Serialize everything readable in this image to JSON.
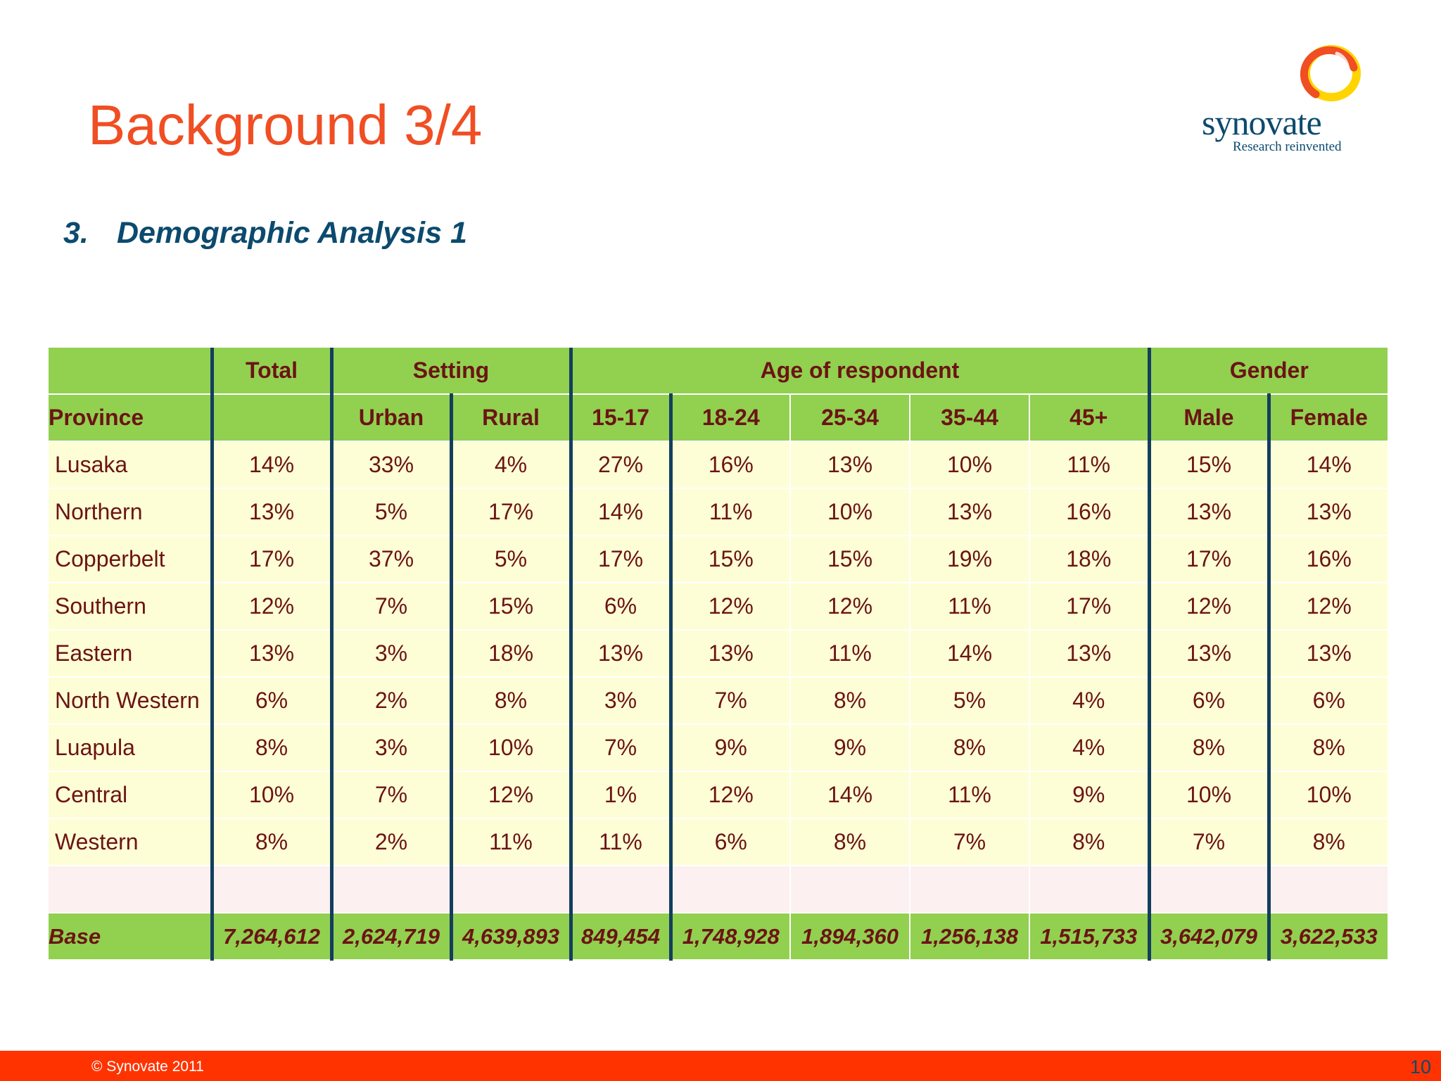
{
  "slide": {
    "title": "Background 3/4",
    "subtitle_number": "3.",
    "subtitle": "Demographic Analysis 1"
  },
  "logo": {
    "name": "synovate",
    "tagline": "Research reinvented",
    "colors": {
      "outer_ring": "#f04e23",
      "inner_ring": "#ffd400"
    }
  },
  "table": {
    "group_headers": {
      "blank": "",
      "total": "Total",
      "setting": "Setting",
      "age": "Age of respondent",
      "gender": "Gender"
    },
    "sub_headers": [
      "Province",
      "",
      "Urban",
      "Rural",
      "15-17",
      "18-24",
      "25-34",
      "35-44",
      "45+",
      "Male",
      "Female"
    ],
    "rows": [
      [
        "Lusaka",
        "14%",
        "33%",
        "4%",
        "27%",
        "16%",
        "13%",
        "10%",
        "11%",
        "15%",
        "14%"
      ],
      [
        "Northern",
        "13%",
        "5%",
        "17%",
        "14%",
        "11%",
        "10%",
        "13%",
        "16%",
        "13%",
        "13%"
      ],
      [
        "Copperbelt",
        "17%",
        "37%",
        "5%",
        "17%",
        "15%",
        "15%",
        "19%",
        "18%",
        "17%",
        "16%"
      ],
      [
        "Southern",
        "12%",
        "7%",
        "15%",
        "6%",
        "12%",
        "12%",
        "11%",
        "17%",
        "12%",
        "12%"
      ],
      [
        "Eastern",
        "13%",
        "3%",
        "18%",
        "13%",
        "13%",
        "11%",
        "14%",
        "13%",
        "13%",
        "13%"
      ],
      [
        "North Western",
        "6%",
        "2%",
        "8%",
        "3%",
        "7%",
        "8%",
        "5%",
        "4%",
        "6%",
        "6%"
      ],
      [
        "Luapula",
        "8%",
        "3%",
        "10%",
        "7%",
        "9%",
        "9%",
        "8%",
        "4%",
        "8%",
        "8%"
      ],
      [
        "Central",
        "10%",
        "7%",
        "12%",
        "1%",
        "12%",
        "14%",
        "11%",
        "9%",
        "10%",
        "10%"
      ],
      [
        "Western",
        "8%",
        "2%",
        "11%",
        "11%",
        "6%",
        "8%",
        "7%",
        "8%",
        "7%",
        "8%"
      ]
    ],
    "base": [
      "Base",
      "7,264,612",
      "2,624,719",
      "4,639,893",
      "849,454",
      "1,748,928",
      "1,894,360",
      "1,256,138",
      "1,515,733",
      "3,642,079",
      "3,622,533"
    ],
    "colors": {
      "header_bg": "#92d050",
      "row_bg": "#fefed6",
      "blank_row_bg": "#fcf0f0",
      "text": "#6b1414",
      "divider": "#133e5e"
    }
  },
  "footer": {
    "copyright": "© Synovate 2011",
    "page_number": "10",
    "bar_color": "#ff3300"
  }
}
